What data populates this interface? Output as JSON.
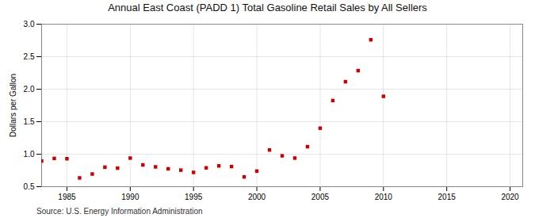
{
  "chart_data": {
    "type": "scatter",
    "title": "Annual East Coast (PADD 1) Total Gasoline Retail Sales by All Sellers",
    "ylabel": "Dollars per Gallon",
    "annotations": [
      "Source: U.S. Energy Information Administration"
    ],
    "color": "#cc0000",
    "marker": "square",
    "grid": true,
    "xlim": [
      1983,
      2021
    ],
    "ylim": [
      0.5,
      3.0
    ],
    "xticks": [
      1985,
      1990,
      1995,
      2000,
      2005,
      2010,
      2015,
      2020
    ],
    "yticks": [
      0.5,
      {
        "value": 1.0,
        "label": "1.0"
      },
      1.5,
      {
        "value": 2.0,
        "label": "2.0"
      },
      2.5,
      {
        "value": 3.0,
        "label": "3.0"
      }
    ],
    "x": [
      1983,
      1984,
      1985,
      1986,
      1987,
      1988,
      1989,
      1990,
      1991,
      1992,
      1993,
      1994,
      1995,
      1996,
      1997,
      1998,
      1999,
      2000,
      2001,
      2002,
      2003,
      2004,
      2005,
      2006,
      2007,
      2008,
      2009,
      2010
    ],
    "values": [
      0.895,
      0.935,
      0.93,
      0.635,
      0.695,
      0.8,
      0.785,
      0.94,
      0.835,
      0.805,
      0.775,
      0.755,
      0.72,
      0.79,
      0.82,
      0.81,
      0.65,
      0.74,
      1.065,
      0.975,
      0.94,
      1.115,
      1.4,
      1.825,
      2.115,
      2.285,
      2.76,
      1.89
    ]
  }
}
